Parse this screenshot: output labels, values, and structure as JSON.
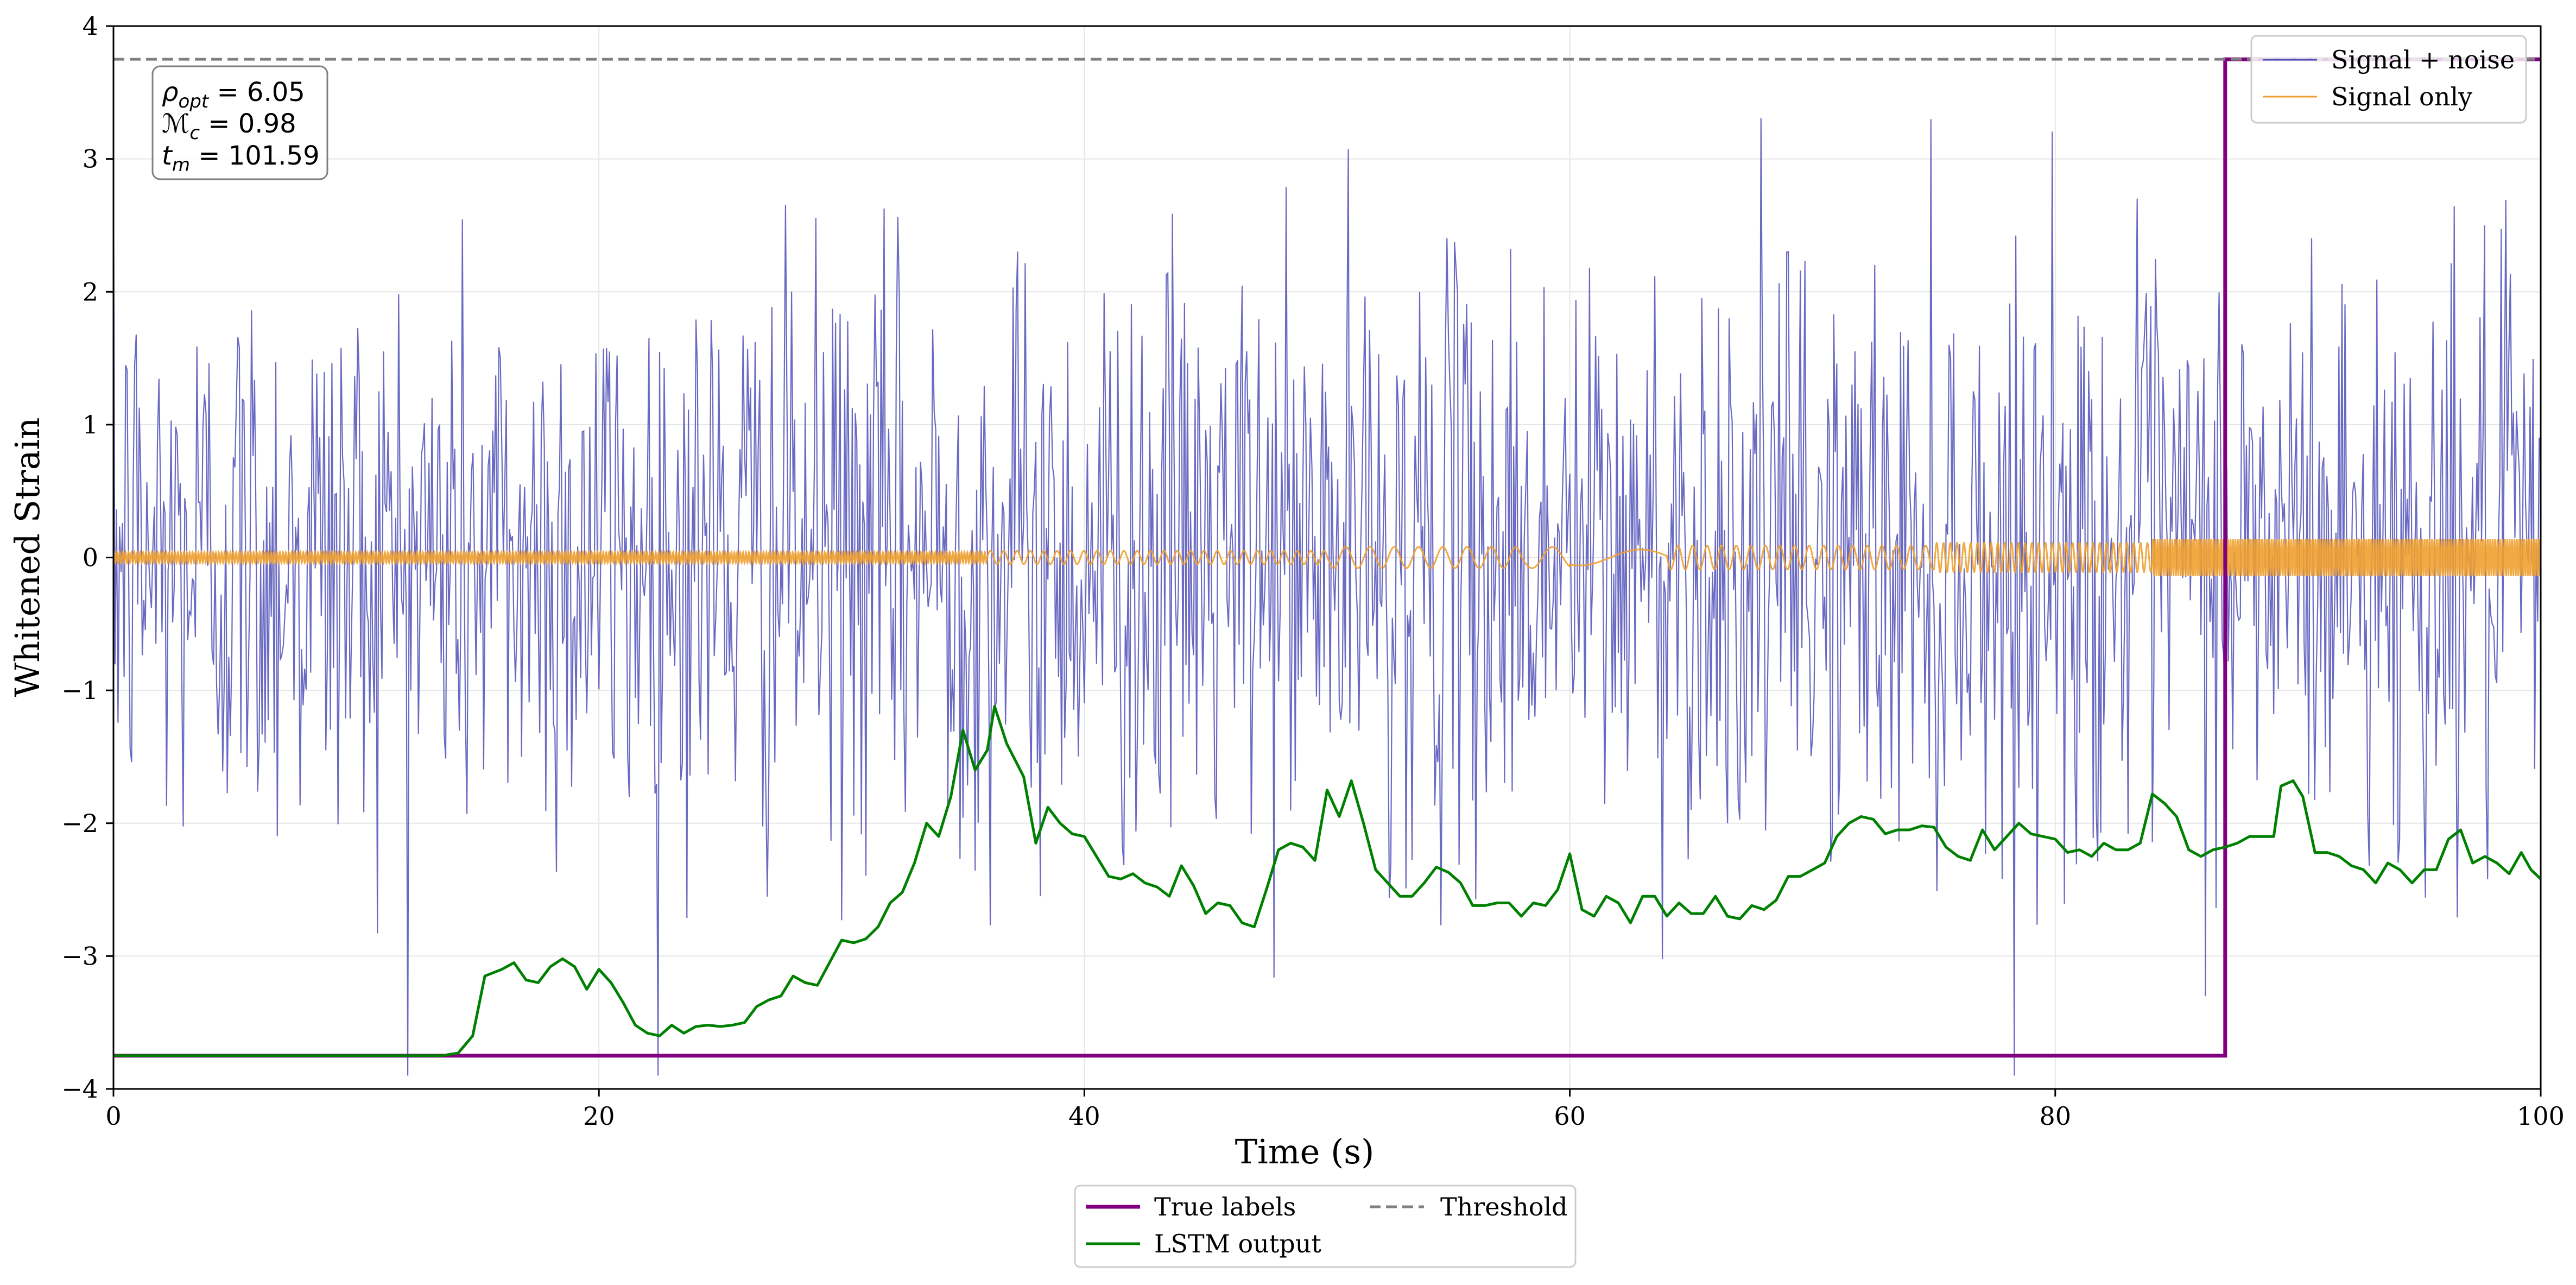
{
  "chart_data": {
    "type": "line",
    "title": "",
    "xlabel": "Time (s)",
    "ylabel": "Whitened Strain",
    "xlim": [
      0,
      100
    ],
    "ylim": [
      -4,
      4
    ],
    "xticks": [
      0,
      20,
      40,
      60,
      80,
      100
    ],
    "yticks": [
      -4,
      -3,
      -2,
      -1,
      0,
      1,
      2,
      3,
      4
    ],
    "grid": true,
    "textbox": {
      "rho_symbol": "ρ",
      "rho_subscript": "opt",
      "rho_value": "6.05",
      "mc_symbol": "ℳ",
      "mc_subscript": "c",
      "mc_value": "0.98",
      "tm_symbol": "t",
      "tm_subscript": "m",
      "tm_value": "101.59"
    },
    "threshold": 3.75,
    "series": [
      {
        "name": "Signal + noise",
        "color": "#5050b8",
        "kind": "noise",
        "noise_std": 1.1,
        "noise_clip": [
          -3.9,
          3.4
        ],
        "samples": 1600,
        "seed": 12345
      },
      {
        "name": "Signal only",
        "color": "#f0a030",
        "kind": "chirp",
        "sections": [
          {
            "t_start": 0,
            "t_end": 36,
            "amplitude": 0.04,
            "period": 0.12
          },
          {
            "t_start": 36,
            "t_end": 50,
            "amplitude": 0.05,
            "period": 0.55
          },
          {
            "t_start": 50,
            "t_end": 58,
            "amplitude": 0.08,
            "period": 1.0
          },
          {
            "t_start": 58,
            "t_end": 60,
            "amplitude": 0.08,
            "period": 1.7
          },
          {
            "t_start": 60,
            "t_end": 64,
            "amplitude": 0.06,
            "period": 5.0
          },
          {
            "t_start": 64,
            "t_end": 75,
            "amplitude": 0.09,
            "period": 0.6
          },
          {
            "t_start": 75,
            "t_end": 84,
            "amplitude": 0.11,
            "period": 0.28
          },
          {
            "t_start": 84,
            "t_end": 100,
            "amplitude": 0.14,
            "period": 0.1
          }
        ]
      },
      {
        "name": "True labels",
        "color": "#800080",
        "kind": "step",
        "points": [
          [
            0,
            -3.75
          ],
          [
            87,
            -3.75
          ],
          [
            87,
            3.75
          ],
          [
            100,
            3.75
          ]
        ]
      },
      {
        "name": "LSTM output",
        "color": "#008000",
        "kind": "line",
        "points": [
          [
            0,
            -3.75
          ],
          [
            13.5,
            -3.75
          ],
          [
            14.2,
            -3.73
          ],
          [
            14.8,
            -3.6
          ],
          [
            15.3,
            -3.15
          ],
          [
            16,
            -3.1
          ],
          [
            16.5,
            -3.05
          ],
          [
            17,
            -3.18
          ],
          [
            17.5,
            -3.2
          ],
          [
            18,
            -3.08
          ],
          [
            18.5,
            -3.02
          ],
          [
            19,
            -3.08
          ],
          [
            19.5,
            -3.25
          ],
          [
            20,
            -3.1
          ],
          [
            20.5,
            -3.2
          ],
          [
            21,
            -3.35
          ],
          [
            21.5,
            -3.52
          ],
          [
            22,
            -3.58
          ],
          [
            22.5,
            -3.6
          ],
          [
            23,
            -3.52
          ],
          [
            23.5,
            -3.58
          ],
          [
            24,
            -3.53
          ],
          [
            24.5,
            -3.52
          ],
          [
            25,
            -3.53
          ],
          [
            25.5,
            -3.52
          ],
          [
            26,
            -3.5
          ],
          [
            26.5,
            -3.38
          ],
          [
            27,
            -3.33
          ],
          [
            27.5,
            -3.3
          ],
          [
            28,
            -3.15
          ],
          [
            28.5,
            -3.2
          ],
          [
            29,
            -3.22
          ],
          [
            29.5,
            -3.05
          ],
          [
            30,
            -2.88
          ],
          [
            30.5,
            -2.9
          ],
          [
            31,
            -2.87
          ],
          [
            31.5,
            -2.78
          ],
          [
            32,
            -2.6
          ],
          [
            32.5,
            -2.52
          ],
          [
            33,
            -2.3
          ],
          [
            33.5,
            -2.0
          ],
          [
            34,
            -2.1
          ],
          [
            34.5,
            -1.8
          ],
          [
            35,
            -1.3
          ],
          [
            35.5,
            -1.6
          ],
          [
            36,
            -1.45
          ],
          [
            36.3,
            -1.12
          ],
          [
            36.8,
            -1.4
          ],
          [
            37.5,
            -1.65
          ],
          [
            38,
            -2.15
          ],
          [
            38.5,
            -1.88
          ],
          [
            39,
            -2.0
          ],
          [
            39.5,
            -2.08
          ],
          [
            40,
            -2.1
          ],
          [
            40.5,
            -2.25
          ],
          [
            41,
            -2.4
          ],
          [
            41.5,
            -2.42
          ],
          [
            42,
            -2.38
          ],
          [
            42.5,
            -2.45
          ],
          [
            43,
            -2.48
          ],
          [
            43.5,
            -2.55
          ],
          [
            44,
            -2.32
          ],
          [
            44.5,
            -2.47
          ],
          [
            45,
            -2.68
          ],
          [
            45.5,
            -2.6
          ],
          [
            46,
            -2.62
          ],
          [
            46.5,
            -2.75
          ],
          [
            47,
            -2.78
          ],
          [
            47.5,
            -2.5
          ],
          [
            48,
            -2.2
          ],
          [
            48.5,
            -2.15
          ],
          [
            49,
            -2.18
          ],
          [
            49.5,
            -2.28
          ],
          [
            50,
            -1.75
          ],
          [
            50.5,
            -1.95
          ],
          [
            51,
            -1.68
          ],
          [
            51.5,
            -2.0
          ],
          [
            52,
            -2.35
          ],
          [
            52.5,
            -2.45
          ],
          [
            53,
            -2.55
          ],
          [
            53.5,
            -2.55
          ],
          [
            54,
            -2.45
          ],
          [
            54.5,
            -2.33
          ],
          [
            55,
            -2.37
          ],
          [
            55.5,
            -2.45
          ],
          [
            56,
            -2.62
          ],
          [
            56.5,
            -2.62
          ],
          [
            57,
            -2.6
          ],
          [
            57.5,
            -2.6
          ],
          [
            58,
            -2.7
          ],
          [
            58.5,
            -2.6
          ],
          [
            59,
            -2.62
          ],
          [
            59.5,
            -2.5
          ],
          [
            60,
            -2.23
          ],
          [
            60.5,
            -2.65
          ],
          [
            61,
            -2.7
          ],
          [
            61.5,
            -2.55
          ],
          [
            62,
            -2.6
          ],
          [
            62.5,
            -2.75
          ],
          [
            63,
            -2.55
          ],
          [
            63.5,
            -2.55
          ],
          [
            64,
            -2.7
          ],
          [
            64.5,
            -2.6
          ],
          [
            65,
            -2.68
          ],
          [
            65.5,
            -2.68
          ],
          [
            66,
            -2.55
          ],
          [
            66.5,
            -2.7
          ],
          [
            67,
            -2.72
          ],
          [
            67.5,
            -2.62
          ],
          [
            68,
            -2.65
          ],
          [
            68.5,
            -2.58
          ],
          [
            69,
            -2.4
          ],
          [
            69.5,
            -2.4
          ],
          [
            70,
            -2.35
          ],
          [
            70.5,
            -2.3
          ],
          [
            71,
            -2.1
          ],
          [
            71.5,
            -2.0
          ],
          [
            72,
            -1.95
          ],
          [
            72.5,
            -1.97
          ],
          [
            73,
            -2.08
          ],
          [
            73.5,
            -2.05
          ],
          [
            74,
            -2.05
          ],
          [
            74.5,
            -2.02
          ],
          [
            75,
            -2.03
          ],
          [
            75.5,
            -2.18
          ],
          [
            76,
            -2.25
          ],
          [
            76.5,
            -2.28
          ],
          [
            77,
            -2.05
          ],
          [
            77.5,
            -2.2
          ],
          [
            78,
            -2.1
          ],
          [
            78.5,
            -2.0
          ],
          [
            79,
            -2.08
          ],
          [
            79.5,
            -2.1
          ],
          [
            80,
            -2.12
          ],
          [
            80.5,
            -2.22
          ],
          [
            81,
            -2.2
          ],
          [
            81.5,
            -2.25
          ],
          [
            82,
            -2.15
          ],
          [
            82.5,
            -2.2
          ],
          [
            83,
            -2.2
          ],
          [
            83.5,
            -2.15
          ],
          [
            84,
            -1.78
          ],
          [
            84.5,
            -1.85
          ],
          [
            85,
            -1.95
          ],
          [
            85.5,
            -2.2
          ],
          [
            86,
            -2.25
          ],
          [
            86.5,
            -2.2
          ],
          [
            87,
            -2.18
          ],
          [
            87.5,
            -2.15
          ],
          [
            88,
            -2.1
          ],
          [
            88.5,
            -2.1
          ],
          [
            89,
            -2.1
          ],
          [
            89.3,
            -1.72
          ],
          [
            89.8,
            -1.68
          ],
          [
            90.2,
            -1.8
          ],
          [
            90.7,
            -2.22
          ],
          [
            91.2,
            -2.22
          ],
          [
            91.7,
            -2.25
          ],
          [
            92.2,
            -2.32
          ],
          [
            92.7,
            -2.35
          ],
          [
            93.2,
            -2.45
          ],
          [
            93.7,
            -2.3
          ],
          [
            94.2,
            -2.35
          ],
          [
            94.7,
            -2.45
          ],
          [
            95.2,
            -2.35
          ],
          [
            95.7,
            -2.35
          ],
          [
            96.2,
            -2.12
          ],
          [
            96.7,
            -2.05
          ],
          [
            97.2,
            -2.3
          ],
          [
            97.7,
            -2.25
          ],
          [
            98.2,
            -2.3
          ],
          [
            98.7,
            -2.38
          ],
          [
            99.2,
            -2.22
          ],
          [
            99.6,
            -2.35
          ],
          [
            100,
            -2.42
          ]
        ]
      },
      {
        "name": "Threshold",
        "color": "#808080",
        "kind": "hline",
        "y": 3.75
      }
    ],
    "legend_upper": {
      "location": "top-right",
      "entries": [
        "Signal + noise",
        "Signal only"
      ]
    },
    "legend_lower": {
      "location": "bottom-center",
      "columns": 2,
      "entries": [
        "True labels",
        "LSTM output",
        "Threshold"
      ]
    }
  }
}
